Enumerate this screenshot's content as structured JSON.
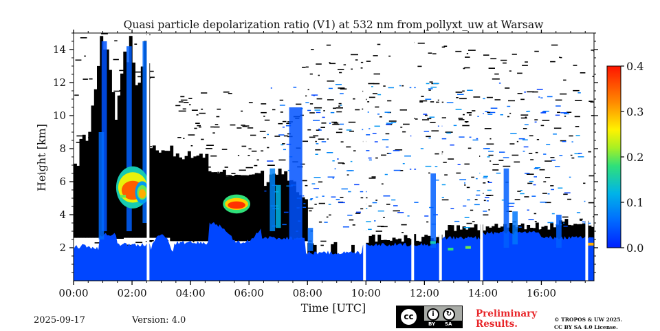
{
  "chart_data": {
    "type": "heatmap",
    "title": "Quasi particle depolarization ratio (V1) at 532 nm from pollyxt_uw at Warsaw",
    "xlabel": "Time [UTC]",
    "ylabel": "Height [km]",
    "x_ticks": [
      "00:00",
      "02:00",
      "04:00",
      "06:00",
      "08:00",
      "10:00",
      "12:00",
      "14:00",
      "16:00"
    ],
    "x_tick_hours": [
      0,
      2,
      4,
      6,
      8,
      10,
      12,
      14,
      16
    ],
    "xlim_hours": [
      0,
      17.8
    ],
    "y_ticks": [
      "2",
      "4",
      "6",
      "8",
      "10",
      "12",
      "14"
    ],
    "y_tick_values": [
      2,
      4,
      6,
      8,
      10,
      12,
      14
    ],
    "ylim_km": [
      0,
      15
    ],
    "colorbar": {
      "min": 0.0,
      "max": 0.4,
      "ticks": [
        "0.0",
        "0.1",
        "0.2",
        "0.3",
        "0.4"
      ],
      "tick_values": [
        0.0,
        0.1,
        0.2,
        0.3,
        0.4
      ],
      "colormap": "jet"
    },
    "data_gaps_hours": [
      2.55,
      9.95,
      11.6,
      12.55,
      13.95,
      17.55
    ],
    "cloud_mask_color": "#000000",
    "regions": [
      {
        "name": "boundary-layer-low-depol",
        "t_start": 0.0,
        "t_end": 17.8,
        "h_bottom": 0.0,
        "h_top": 2.0,
        "value": 0.03
      },
      {
        "name": "high-depol-layer-1",
        "t_start": 1.55,
        "t_end": 2.5,
        "h_bottom": 4.5,
        "h_top": 6.8,
        "value": 0.35
      },
      {
        "name": "high-depol-layer-2",
        "t_start": 5.2,
        "t_end": 5.95,
        "h_bottom": 4.2,
        "h_top": 5.1,
        "value": 0.38
      },
      {
        "name": "elevated-high-depol-0230",
        "t_start": 2.2,
        "t_end": 2.5,
        "h_bottom": 4.8,
        "h_top": 5.9,
        "value": 0.3
      }
    ]
  },
  "footer": {
    "date": "2025-09-17",
    "version": "Version: 4.0",
    "preliminary": [
      "Preliminary",
      "Results."
    ],
    "copyright": [
      "© TROPOS & UW 2025.",
      "CC BY SA 4.0 License."
    ],
    "license_badge": {
      "main": "cc",
      "tags": [
        "BY",
        "SA"
      ]
    }
  },
  "colors": {
    "accent_red": "#e8262a",
    "cloud": "#000000"
  }
}
